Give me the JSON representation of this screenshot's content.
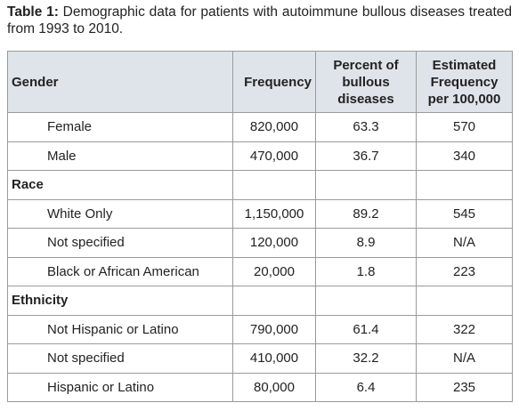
{
  "caption": {
    "label": "Table 1:",
    "text": "Demographic data for patients with autoimmune bullous diseases treated from 1993 to 2010."
  },
  "table": {
    "header": [
      "Gender",
      "Frequency",
      "Percent of bullous diseases",
      "Estimated Frequency per 100,000"
    ],
    "rows": [
      [
        "Female",
        "820,000",
        "63.3",
        "570"
      ],
      [
        "Male",
        "470,000",
        "36.7",
        "340"
      ],
      [
        "Race"
      ],
      [
        "White Only",
        "1,150,000",
        "89.2",
        "545"
      ],
      [
        "Not specified",
        "120,000",
        "8.9",
        "N/A"
      ],
      [
        "Black or African American",
        "20,000",
        "1.8",
        "223"
      ],
      [
        "Ethnicity"
      ],
      [
        "Not Hispanic or Latino",
        "790,000",
        "61.4",
        "322"
      ],
      [
        "Not specified",
        "410,000",
        "32.2",
        "N/A"
      ],
      [
        "Hispanic or Latino",
        "80,000",
        "6.4",
        "235"
      ]
    ]
  }
}
